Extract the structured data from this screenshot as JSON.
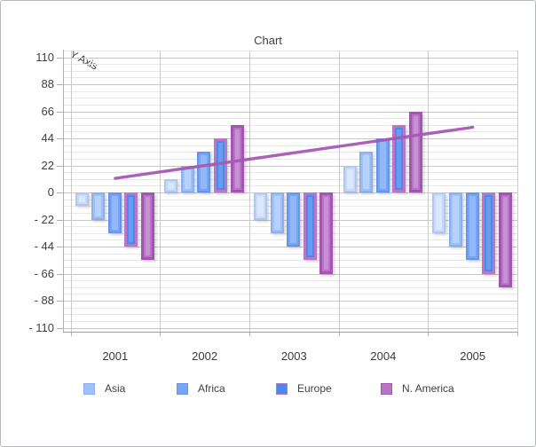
{
  "panel": {
    "background": "#ffffff",
    "border_color": "#b7bbc0"
  },
  "chart_data": {
    "type": "bar",
    "title": "Chart",
    "y_axis_label": "Y Axis",
    "categories": [
      "2001",
      "2002",
      "2003",
      "2004",
      "2005"
    ],
    "y_axis": {
      "min": -110,
      "max": 110,
      "major_step": 22,
      "minor_step": 5.5,
      "tick_labels": [
        "110",
        "88",
        "66",
        "44",
        "22",
        "0",
        "- 22",
        "- 44",
        "- 66",
        "- 88",
        "- 110"
      ]
    },
    "grid": {
      "horizontal_major": true,
      "horizontal_minor": true,
      "vertical": true
    },
    "series": [
      {
        "name": "",
        "in_legend": false,
        "values": [
          -11,
          11,
          -22,
          22,
          -33
        ],
        "fill": "#c7daf8",
        "stroke": "#afc8f3",
        "highlight": "#dbe8fc"
      },
      {
        "name": "Asia",
        "in_legend": true,
        "values": [
          -22,
          22,
          -33,
          33,
          -44
        ],
        "fill": "#9fc1f6",
        "stroke": "#8ab0f0",
        "highlight": "#b7d1fa"
      },
      {
        "name": "Africa",
        "in_legend": true,
        "values": [
          -33,
          33,
          -44,
          44,
          -55
        ],
        "fill": "#77a5f3",
        "stroke": "#6495ef",
        "highlight": "#92b8f7"
      },
      {
        "name": "Europe",
        "in_legend": true,
        "values": [
          -44,
          44,
          -55,
          55,
          -66
        ],
        "fill": "#4e87ee",
        "stroke": "#b878c5",
        "highlight": "#699df2"
      },
      {
        "name": "N. America",
        "in_legend": true,
        "values": [
          -55,
          55,
          -66,
          66,
          -77
        ],
        "fill": "#b975c5",
        "stroke": "#a256b0",
        "highlight": "#c88fd2"
      }
    ],
    "trend_line": {
      "color": "#a55ab4",
      "start_category": "2001",
      "start_value": 11.5,
      "end_category": "2005",
      "end_value": 53
    },
    "legend_position": "bottom"
  },
  "legend": {
    "items": [
      {
        "label": "Asia",
        "fill": "#9fc1f6",
        "stroke": "#8ab0f0"
      },
      {
        "label": "Africa",
        "fill": "#77a5f3",
        "stroke": "#6495ef"
      },
      {
        "label": "Europe",
        "fill": "#4e87ee",
        "stroke": "#b878c5"
      },
      {
        "label": "N. America",
        "fill": "#b975c5",
        "stroke": "#a256b0"
      }
    ]
  }
}
